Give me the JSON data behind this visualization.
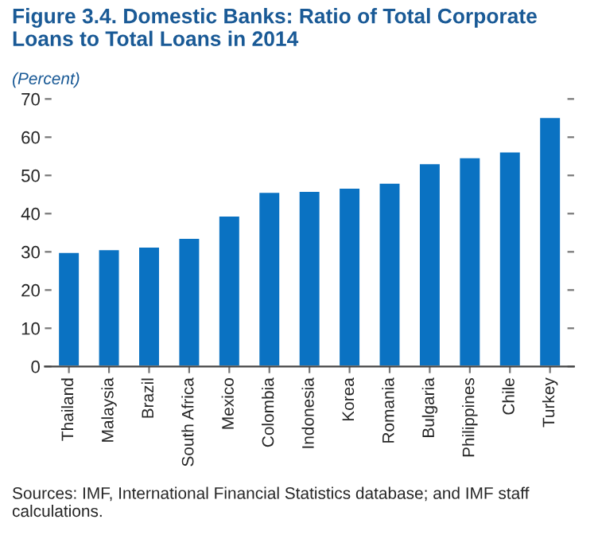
{
  "chart_data": {
    "type": "bar",
    "title": "Figure 3.4. Domestic Banks: Ratio of Total Corporate Loans to Total Loans in 2014",
    "subtitle": "(Percent)",
    "categories": [
      "Thailand",
      "Malaysia",
      "Brazil",
      "South Africa",
      "Mexico",
      "Colombia",
      "Indonesia",
      "Korea",
      "Romania",
      "Bulgaria",
      "Philippines",
      "Chile",
      "Turkey"
    ],
    "values": [
      30.0,
      30.7,
      31.4,
      33.7,
      39.5,
      45.7,
      46.0,
      46.8,
      48.1,
      53.2,
      54.8,
      56.3,
      65.3
    ],
    "color": "#0a72c2",
    "ylim": [
      0,
      70
    ],
    "yticks": [
      0,
      10,
      20,
      30,
      40,
      50,
      60,
      70
    ],
    "grid": false,
    "annotations": [
      "Sources: IMF, International Financial Statistics database; and IMF staff calculations."
    ]
  }
}
